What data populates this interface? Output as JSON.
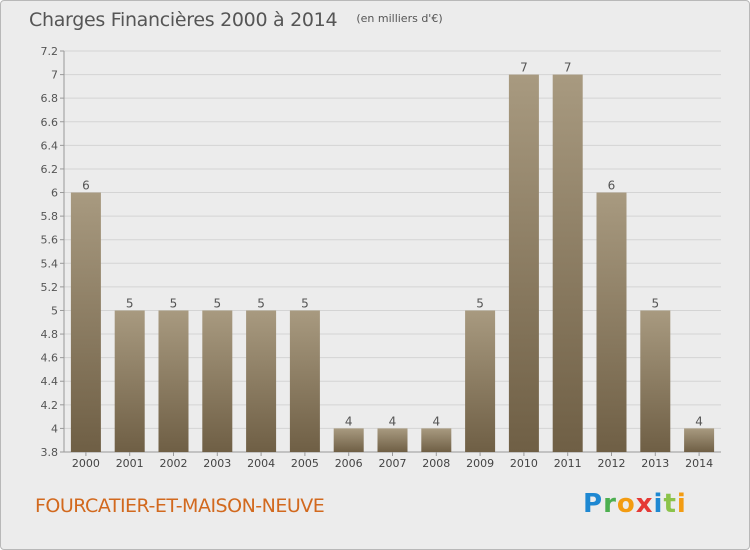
{
  "chart_data": {
    "type": "bar",
    "title": "Charges Financières 2000 à 2014",
    "subtitle": "(en milliers d'€)",
    "categories": [
      "2000",
      "2001",
      "2002",
      "2003",
      "2004",
      "2005",
      "2006",
      "2007",
      "2008",
      "2009",
      "2010",
      "2011",
      "2012",
      "2013",
      "2014"
    ],
    "values": [
      6,
      5,
      5,
      5,
      5,
      5,
      4,
      4,
      4,
      5,
      7,
      7,
      6,
      5,
      4
    ],
    "data_labels": [
      "6",
      "5",
      "5",
      "5",
      "5",
      "5",
      "4",
      "4",
      "4",
      "5",
      "7",
      "7",
      "6",
      "5",
      "4"
    ],
    "ylim": [
      3.8,
      7.2
    ],
    "yticks": [
      3.8,
      4,
      4.2,
      4.4,
      4.6,
      4.8,
      5,
      5.2,
      5.4,
      5.6,
      5.8,
      6,
      6.2,
      6.4,
      6.6,
      6.8,
      7,
      7.2
    ],
    "ytick_labels": [
      "3.8",
      "4",
      "4.2",
      "4.4",
      "4.6",
      "4.8",
      "5",
      "5.2",
      "5.4",
      "5.6",
      "5.8",
      "6",
      "6.2",
      "6.4",
      "6.6",
      "6.8",
      "7",
      "7.2"
    ],
    "xlabel": "",
    "ylabel": "",
    "grid": true,
    "legend": "none",
    "bar_color_top": "#a89a80",
    "bar_color_bottom": "#6f5f45"
  },
  "commune": "FOURCATIER-ET-MAISON-NEUVE",
  "logo": {
    "text": "Proxiti",
    "letters": [
      "P",
      "r",
      "o",
      "x",
      "i",
      "t",
      "i"
    ]
  }
}
